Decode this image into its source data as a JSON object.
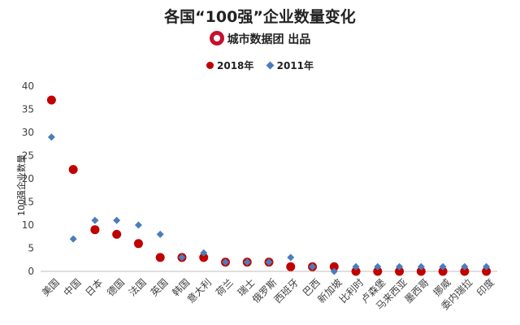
{
  "title": "各国“100强”企业数量变化",
  "subtitle": "城市数据团 出品",
  "chart_data": {
    "type": "scatter",
    "categories": [
      "美国",
      "中国",
      "日本",
      "德国",
      "法国",
      "英国",
      "韩国",
      "意大利",
      "荷兰",
      "瑞士",
      "俄罗斯",
      "西班牙",
      "巴西",
      "新加坡",
      "比利时",
      "卢森堡",
      "马来西亚",
      "墨西哥",
      "挪威",
      "委内瑞拉",
      "印度"
    ],
    "series": [
      {
        "name": "2018年",
        "marker": "circle",
        "color": "#c00000",
        "values": [
          37,
          22,
          9,
          8,
          6,
          3,
          3,
          3,
          2,
          2,
          2,
          1,
          1,
          1,
          0,
          0,
          0,
          0,
          0,
          0,
          0
        ]
      },
      {
        "name": "2011年",
        "marker": "diamond",
        "color": "#4a7ebb",
        "values": [
          29,
          7,
          11,
          11,
          10,
          8,
          3,
          4,
          2,
          2,
          2,
          3,
          1,
          0,
          1,
          1,
          1,
          1,
          1,
          1,
          1
        ]
      }
    ],
    "ylabel": "100强企业数量",
    "ylim": [
      0,
      40
    ],
    "yticks": [
      0,
      5,
      10,
      15,
      20,
      25,
      30,
      35,
      40
    ],
    "grid": false,
    "legend_position": "top-center"
  }
}
